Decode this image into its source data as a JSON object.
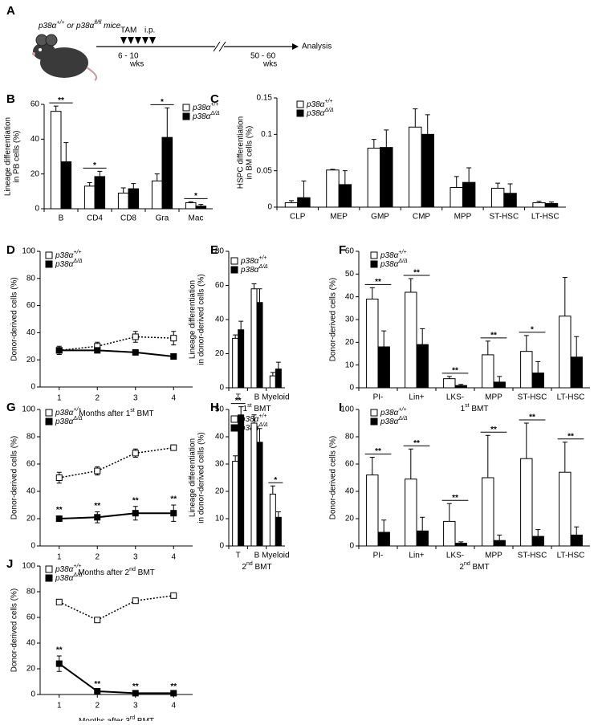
{
  "schematic": {
    "panel": "A",
    "mice": "p38α+/+ or p38αfl/fl mice",
    "tam": "TAM",
    "ip": "i.p.",
    "start": "6 - 10",
    "start_unit": "wks",
    "end": "50 - 60",
    "end_unit": "wks",
    "analysis": "Analysis"
  },
  "chart_data": [
    {
      "panel": "B",
      "type": "bar",
      "ylabel": [
        "Lineage differentiation",
        "in PB cells (%)"
      ],
      "categories": [
        "B",
        "CD4",
        "CD8",
        "Gra",
        "Mac"
      ],
      "ylim": [
        0,
        60
      ],
      "yticks": [
        0,
        20,
        40,
        60
      ],
      "series": [
        {
          "name": "p38α+/+",
          "color": "#ffffff",
          "values": [
            56,
            13,
            9,
            16,
            3.5
          ],
          "errors": [
            3,
            2,
            3,
            4,
            0.5
          ]
        },
        {
          "name": "p38αΔ/Δ",
          "color": "#000000",
          "values": [
            27,
            18.5,
            11.5,
            41,
            1.5
          ],
          "errors": [
            11,
            3,
            3,
            17,
            1
          ]
        }
      ],
      "significance": [
        "**",
        "*",
        null,
        "*",
        "*"
      ]
    },
    {
      "panel": "C",
      "type": "bar",
      "ylabel": [
        "HSPC differentiation",
        "in BM cells (%)"
      ],
      "categories": [
        "CLP",
        "MEP",
        "GMP",
        "CMP",
        "MPP",
        "ST-HSC",
        "LT-HSC"
      ],
      "ylim": [
        0,
        0.15
      ],
      "yticks": [
        0,
        0.05,
        0.1,
        0.15
      ],
      "series": [
        {
          "name": "p38α+/+",
          "color": "#ffffff",
          "values": [
            0.006,
            0.051,
            0.081,
            0.11,
            0.027,
            0.026,
            0.006
          ],
          "errors": [
            0.003,
            0.001,
            0.012,
            0.025,
            0.015,
            0.007,
            0.002
          ]
        },
        {
          "name": "p38αΔ/Δ",
          "color": "#000000",
          "values": [
            0.013,
            0.031,
            0.082,
            0.1,
            0.034,
            0.019,
            0.005
          ],
          "errors": [
            0.023,
            0.019,
            0.024,
            0.027,
            0.02,
            0.013,
            0.002
          ]
        }
      ]
    },
    {
      "panel": "D",
      "type": "line",
      "ylabel": [
        "Donor-derived cells (%)"
      ],
      "xlabel": "Months after 1st BMT",
      "x": [
        1,
        2,
        3,
        4
      ],
      "xlim": [
        0.5,
        4.5
      ],
      "xticks": [
        1,
        2,
        3,
        4
      ],
      "ylim": [
        0,
        100
      ],
      "yticks": [
        0,
        20,
        40,
        60,
        80,
        100
      ],
      "series": [
        {
          "name": "p38α+/+",
          "color": "#ffffff",
          "line_style": "dotted",
          "values": [
            27,
            30,
            37,
            36
          ],
          "errors": [
            3,
            3,
            4,
            5
          ]
        },
        {
          "name": "p38αΔ/Δ",
          "color": "#000000",
          "line_style": "solid",
          "values": [
            27,
            27,
            25.5,
            22.5
          ],
          "errors": [
            2,
            1,
            1,
            1
          ]
        }
      ]
    },
    {
      "panel": "E",
      "type": "bar",
      "ylabel": [
        "Lineage differentiation",
        "in donor-derived cells (%)"
      ],
      "xlabel": "1st BMT",
      "categories": [
        "T",
        "B",
        "Myeloid"
      ],
      "ylim": [
        0,
        80
      ],
      "yticks": [
        0,
        20,
        40,
        60,
        80
      ],
      "series": [
        {
          "name": "p38α+/+",
          "color": "#ffffff",
          "values": [
            29,
            58,
            7
          ],
          "errors": [
            2,
            3,
            2
          ]
        },
        {
          "name": "p38αΔ/Δ",
          "color": "#000000",
          "values": [
            34,
            50,
            11
          ],
          "errors": [
            5,
            8,
            4
          ]
        }
      ]
    },
    {
      "panel": "F",
      "type": "bar",
      "ylabel": [
        "Donor-derived cells (%)"
      ],
      "xlabel": "1st BMT",
      "categories": [
        "PI-",
        "Lin+",
        "LKS-",
        "MPP",
        "ST-HSC",
        "LT-HSC"
      ],
      "ylim": [
        0,
        60
      ],
      "yticks": [
        0,
        10,
        20,
        30,
        40,
        50,
        60
      ],
      "series": [
        {
          "name": "p38α+/+",
          "color": "#ffffff",
          "values": [
            39,
            42,
            4,
            14.5,
            16,
            31.5
          ],
          "errors": [
            5,
            6,
            1,
            6,
            7,
            17
          ]
        },
        {
          "name": "p38αΔ/Δ",
          "color": "#000000",
          "values": [
            18,
            19,
            1,
            2.5,
            6.5,
            13.5
          ],
          "errors": [
            7,
            7,
            0.5,
            2.5,
            5,
            9
          ]
        }
      ],
      "significance": [
        "**",
        "**",
        "**",
        "**",
        "*",
        null
      ]
    },
    {
      "panel": "G",
      "type": "line",
      "ylabel": [
        "Donor-derived cells (%)"
      ],
      "xlabel": "Months after 2nd BMT",
      "x": [
        1,
        2,
        3,
        4
      ],
      "xlim": [
        0.5,
        4.5
      ],
      "xticks": [
        1,
        2,
        3,
        4
      ],
      "ylim": [
        0,
        100
      ],
      "yticks": [
        0,
        20,
        40,
        60,
        80,
        100
      ],
      "series": [
        {
          "name": "p38α+/+",
          "color": "#ffffff",
          "line_style": "dotted",
          "values": [
            50,
            55,
            68,
            72
          ],
          "errors": [
            4,
            3,
            3,
            2
          ]
        },
        {
          "name": "p38αΔ/Δ",
          "color": "#000000",
          "line_style": "solid",
          "values": [
            20,
            21,
            24,
            24
          ],
          "errors": [
            2,
            4,
            5,
            6
          ]
        }
      ],
      "significance": [
        "**",
        "**",
        "**",
        "**"
      ]
    },
    {
      "panel": "H",
      "type": "bar",
      "ylabel": [
        "Lineage differentiation",
        "in donor-derived cells (%)"
      ],
      "xlabel": "2nd BMT",
      "categories": [
        "T",
        "B",
        "Myeloid"
      ],
      "ylim": [
        0,
        50
      ],
      "yticks": [
        0,
        10,
        20,
        30,
        40,
        50
      ],
      "series": [
        {
          "name": "p38α+/+",
          "color": "#ffffff",
          "values": [
            31,
            45,
            19
          ],
          "errors": [
            2,
            3,
            3
          ]
        },
        {
          "name": "p38αΔ/Δ",
          "color": "#000000",
          "values": [
            48,
            38,
            10.5
          ],
          "errors": [
            3,
            5,
            2
          ]
        }
      ],
      "significance": [
        "**",
        null,
        "*"
      ]
    },
    {
      "panel": "I",
      "type": "bar",
      "ylabel": [
        "Donor-derived cells (%)"
      ],
      "xlabel": "2nd BMT",
      "categories": [
        "PI-",
        "Lin+",
        "LKS-",
        "MPP",
        "ST-HSC",
        "LT-HSC"
      ],
      "ylim": [
        0,
        100
      ],
      "yticks": [
        0,
        20,
        40,
        60,
        80,
        100
      ],
      "series": [
        {
          "name": "p38α+/+",
          "color": "#ffffff",
          "values": [
            52,
            49,
            18,
            50,
            64,
            54
          ],
          "errors": [
            13,
            22,
            13,
            31,
            26,
            22
          ]
        },
        {
          "name": "p38αΔ/Δ",
          "color": "#000000",
          "values": [
            10,
            11,
            2,
            4,
            7,
            8
          ],
          "errors": [
            9,
            10,
            1,
            4,
            5,
            6
          ]
        }
      ],
      "significance": [
        "**",
        "**",
        "**",
        "**",
        "**",
        "**"
      ]
    },
    {
      "panel": "J",
      "type": "line",
      "ylabel": [
        "Donor-derived cells (%)"
      ],
      "xlabel": "Months after 3rd BMT",
      "x": [
        1,
        2,
        3,
        4
      ],
      "xlim": [
        0.5,
        4.5
      ],
      "xticks": [
        1,
        2,
        3,
        4
      ],
      "ylim": [
        0,
        100
      ],
      "yticks": [
        0,
        20,
        40,
        60,
        80,
        100
      ],
      "series": [
        {
          "name": "p38α+/+",
          "color": "#ffffff",
          "line_style": "dotted",
          "values": [
            72,
            58,
            73,
            77
          ],
          "errors": [
            2,
            2,
            1,
            1
          ]
        },
        {
          "name": "p38αΔ/Δ",
          "color": "#000000",
          "line_style": "solid",
          "values": [
            24,
            2.5,
            1,
            1
          ],
          "errors": [
            6,
            1,
            0.5,
            0.5
          ]
        }
      ],
      "significance": [
        "**",
        "**",
        "**",
        "**"
      ]
    }
  ]
}
